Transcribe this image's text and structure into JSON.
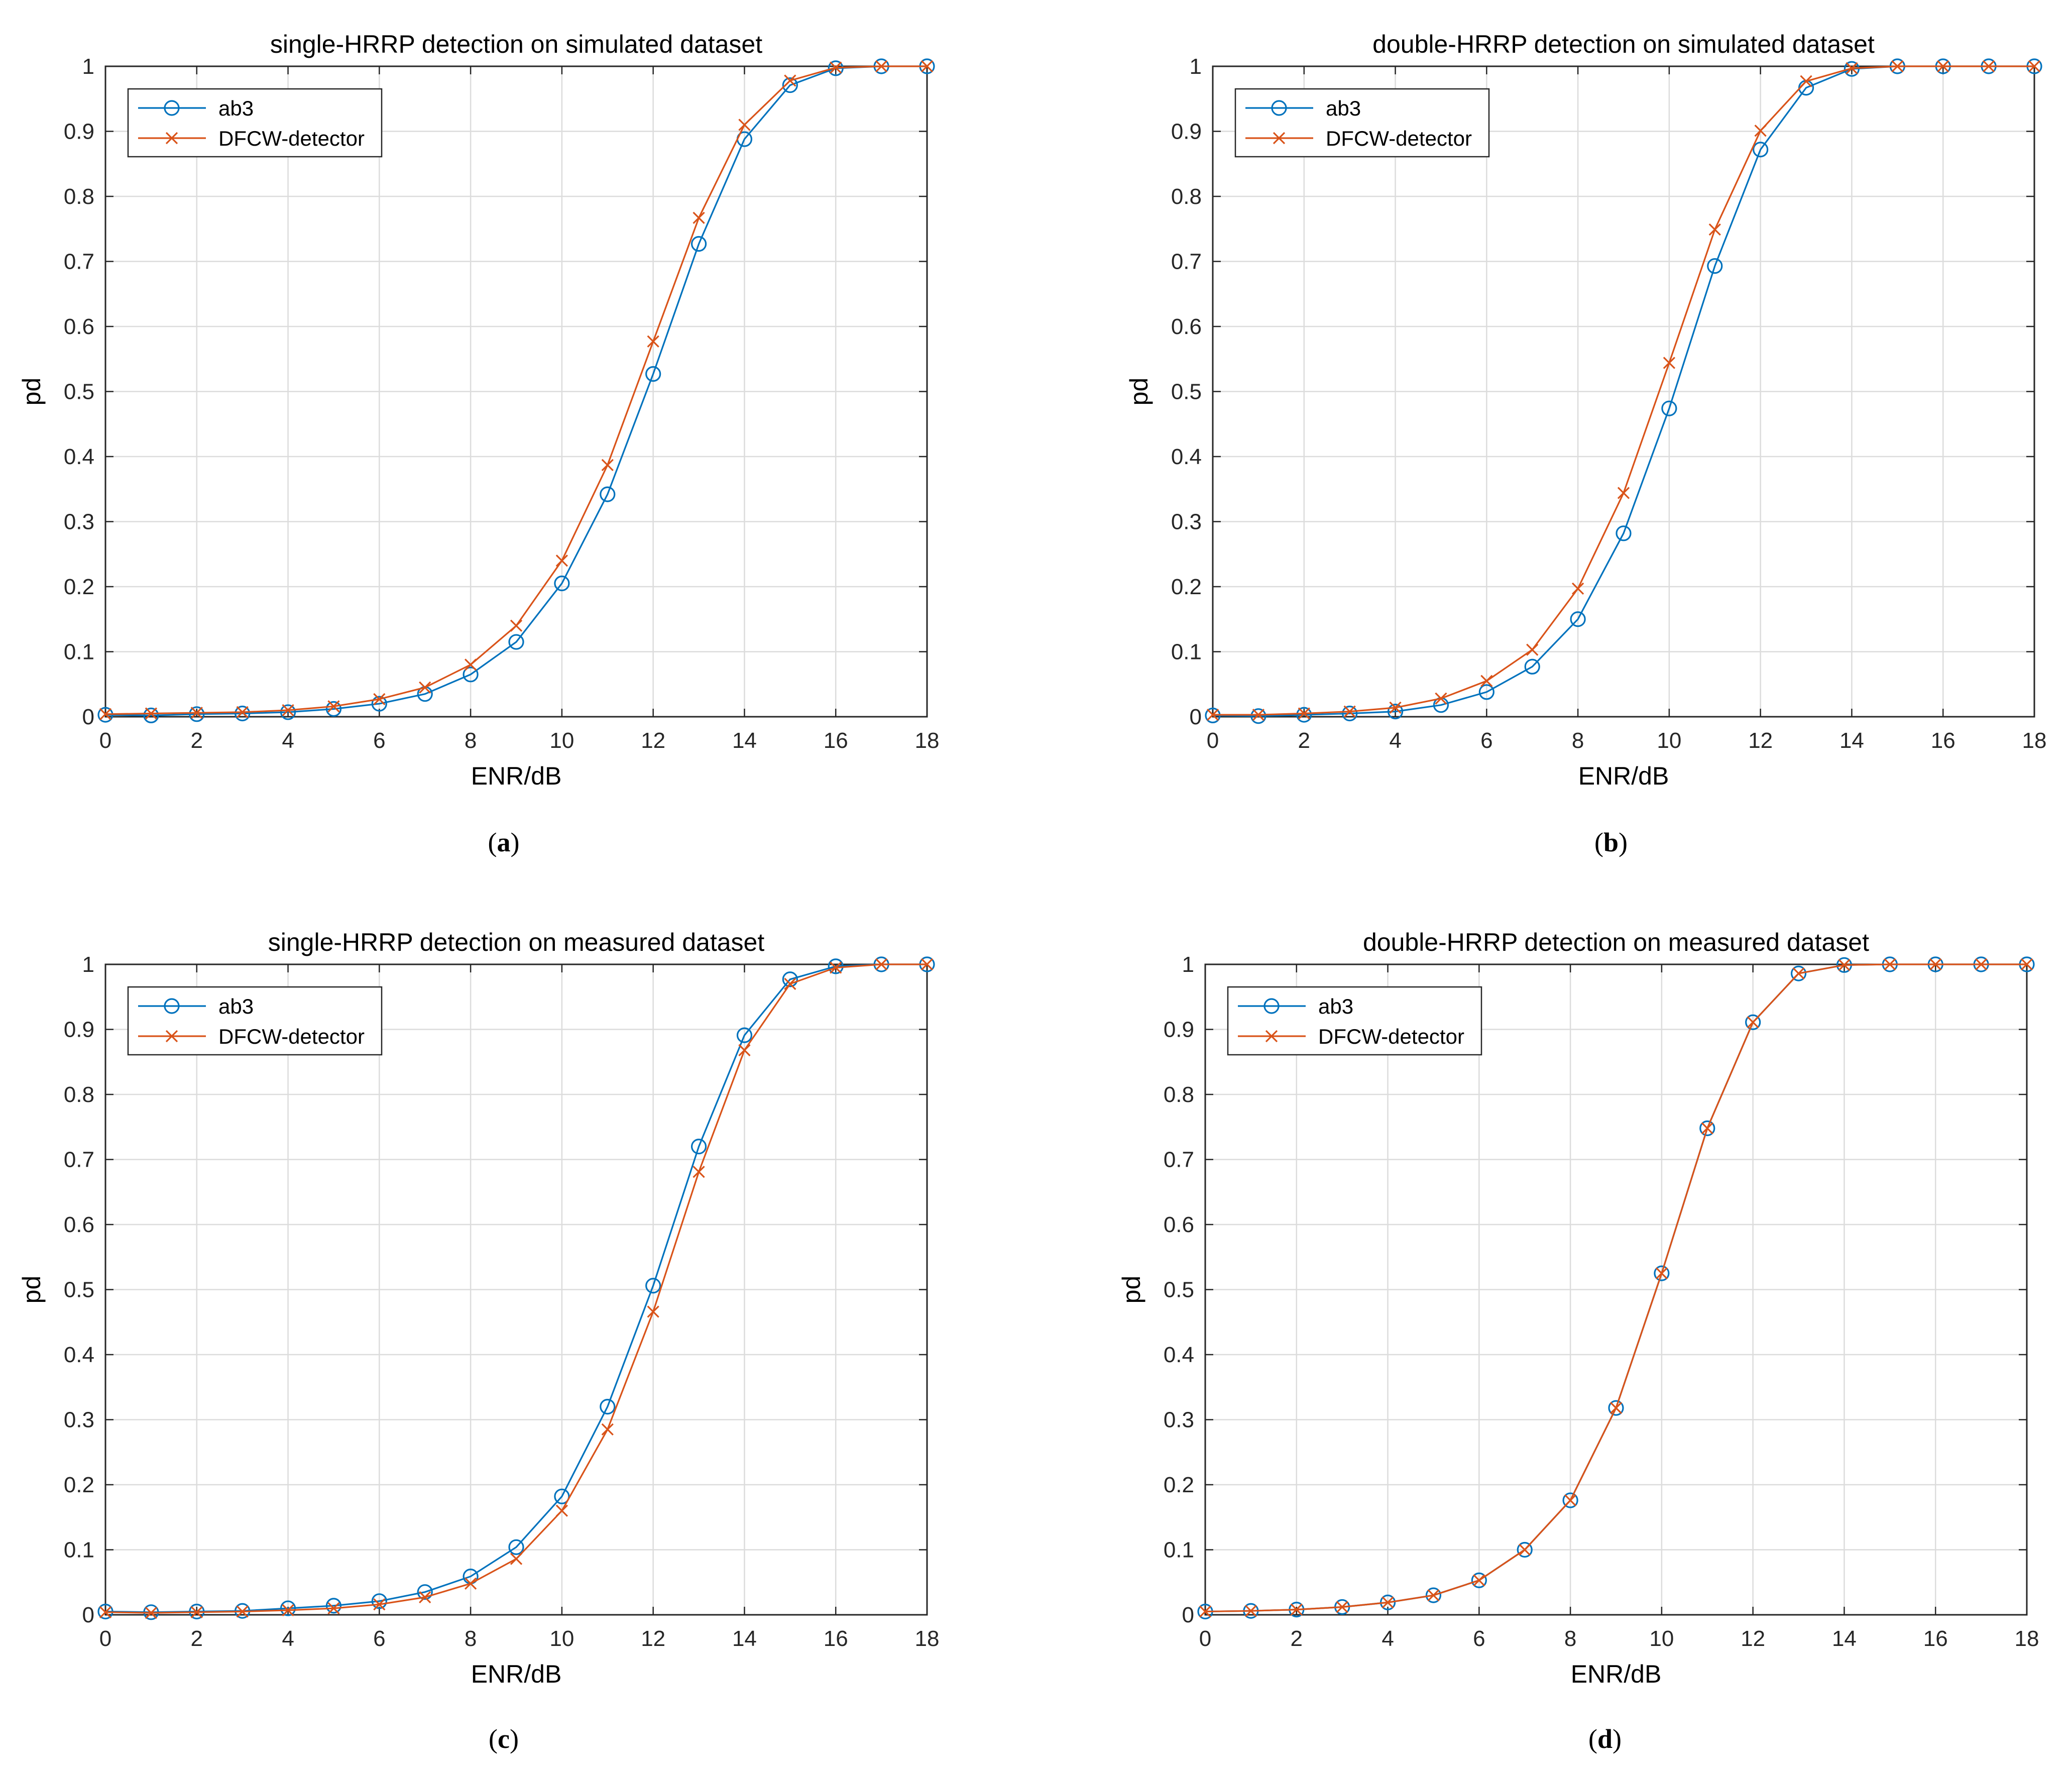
{
  "colors": {
    "ab3": "#0072BD",
    "dfcw": "#D95319",
    "grid": "#dcdcdc",
    "axis": "#262626"
  },
  "chart_data": [
    {
      "type": "line",
      "title": "single-HRRP detection on simulated dataset",
      "xlabel": "ENR/dB",
      "ylabel": "pd",
      "caption": "(a)",
      "xlim": [
        0,
        18
      ],
      "ylim": [
        0,
        1
      ],
      "xticks": [
        0,
        2,
        4,
        6,
        8,
        10,
        12,
        14,
        16,
        18
      ],
      "yticks": [
        0,
        0.1,
        0.2,
        0.3,
        0.4,
        0.5,
        0.6,
        0.7,
        0.8,
        0.9,
        1
      ],
      "grid": true,
      "legend": "top-left",
      "x": [
        0,
        1,
        2,
        3,
        4,
        5,
        6,
        7,
        8,
        9,
        10,
        11,
        12,
        13,
        14,
        15,
        16,
        17,
        18
      ],
      "series": [
        {
          "name": "ab3",
          "marker": "circle",
          "values": [
            0.003,
            0.002,
            0.004,
            0.005,
            0.007,
            0.012,
            0.02,
            0.035,
            0.065,
            0.115,
            0.205,
            0.342,
            0.527,
            0.727,
            0.888,
            0.971,
            0.997,
            1.0,
            1.0
          ]
        },
        {
          "name": "DFCW-detector",
          "marker": "x",
          "values": [
            0.004,
            0.005,
            0.006,
            0.007,
            0.01,
            0.016,
            0.027,
            0.045,
            0.08,
            0.14,
            0.24,
            0.387,
            0.577,
            0.767,
            0.91,
            0.978,
            0.998,
            1.0,
            1.0
          ]
        }
      ]
    },
    {
      "type": "line",
      "title": "double-HRRP detection on simulated dataset",
      "xlabel": "ENR/dB",
      "ylabel": "pd",
      "caption": "(b)",
      "xlim": [
        0,
        18
      ],
      "ylim": [
        0,
        1
      ],
      "xticks": [
        0,
        2,
        4,
        6,
        8,
        10,
        12,
        14,
        16,
        18
      ],
      "yticks": [
        0,
        0.1,
        0.2,
        0.3,
        0.4,
        0.5,
        0.6,
        0.7,
        0.8,
        0.9,
        1
      ],
      "grid": true,
      "legend": "top-left",
      "x": [
        0,
        1,
        2,
        3,
        4,
        5,
        6,
        7,
        8,
        9,
        10,
        11,
        12,
        13,
        14,
        15,
        16,
        17,
        18
      ],
      "series": [
        {
          "name": "ab3",
          "marker": "circle",
          "values": [
            0.002,
            0.001,
            0.003,
            0.005,
            0.008,
            0.018,
            0.038,
            0.077,
            0.15,
            0.282,
            0.474,
            0.693,
            0.872,
            0.967,
            0.996,
            1.0,
            1.0,
            1.0,
            1.0
          ]
        },
        {
          "name": "DFCW-detector",
          "marker": "x",
          "values": [
            0.003,
            0.003,
            0.005,
            0.008,
            0.014,
            0.028,
            0.055,
            0.103,
            0.197,
            0.344,
            0.544,
            0.749,
            0.901,
            0.977,
            0.997,
            1.0,
            1.0,
            1.0,
            1.0
          ]
        }
      ]
    },
    {
      "type": "line",
      "title": "single-HRRP detection on measured dataset",
      "xlabel": "ENR/dB",
      "ylabel": "pd",
      "caption": "(c)",
      "xlim": [
        0,
        18
      ],
      "ylim": [
        0,
        1
      ],
      "xticks": [
        0,
        2,
        4,
        6,
        8,
        10,
        12,
        14,
        16,
        18
      ],
      "yticks": [
        0,
        0.1,
        0.2,
        0.3,
        0.4,
        0.5,
        0.6,
        0.7,
        0.8,
        0.9,
        1
      ],
      "grid": true,
      "legend": "top-left",
      "x": [
        0,
        1,
        2,
        3,
        4,
        5,
        6,
        7,
        8,
        9,
        10,
        11,
        12,
        13,
        14,
        15,
        16,
        17,
        18
      ],
      "series": [
        {
          "name": "ab3",
          "marker": "circle",
          "values": [
            0.005,
            0.004,
            0.005,
            0.006,
            0.01,
            0.014,
            0.021,
            0.035,
            0.059,
            0.104,
            0.182,
            0.32,
            0.506,
            0.72,
            0.891,
            0.977,
            0.997,
            1.0,
            1.0
          ]
        },
        {
          "name": "DFCW-detector",
          "marker": "x",
          "values": [
            0.004,
            0.003,
            0.004,
            0.005,
            0.007,
            0.01,
            0.016,
            0.027,
            0.048,
            0.086,
            0.16,
            0.285,
            0.466,
            0.681,
            0.868,
            0.97,
            0.995,
            1.0,
            1.0
          ]
        }
      ]
    },
    {
      "type": "line",
      "title": "double-HRRP detection on measured dataset",
      "xlabel": "ENR/dB",
      "ylabel": "pd",
      "caption": "(d)",
      "xlim": [
        0,
        18
      ],
      "ylim": [
        0,
        1
      ],
      "xticks": [
        0,
        2,
        4,
        6,
        8,
        10,
        12,
        14,
        16,
        18
      ],
      "yticks": [
        0,
        0.1,
        0.2,
        0.3,
        0.4,
        0.5,
        0.6,
        0.7,
        0.8,
        0.9,
        1
      ],
      "grid": true,
      "legend": "top-left",
      "x": [
        0,
        1,
        2,
        3,
        4,
        5,
        6,
        7,
        8,
        9,
        10,
        11,
        12,
        13,
        14,
        15,
        16,
        17,
        18
      ],
      "series": [
        {
          "name": "ab3",
          "marker": "circle",
          "values": [
            0.005,
            0.006,
            0.008,
            0.012,
            0.019,
            0.03,
            0.053,
            0.1,
            0.176,
            0.318,
            0.525,
            0.748,
            0.911,
            0.986,
            0.999,
            1.0,
            1.0,
            1.0,
            1.0
          ]
        },
        {
          "name": "DFCW-detector",
          "marker": "x",
          "values": [
            0.005,
            0.006,
            0.008,
            0.012,
            0.019,
            0.03,
            0.053,
            0.1,
            0.176,
            0.318,
            0.525,
            0.748,
            0.911,
            0.986,
            0.999,
            1.0,
            1.0,
            1.0,
            1.0
          ]
        }
      ]
    }
  ]
}
